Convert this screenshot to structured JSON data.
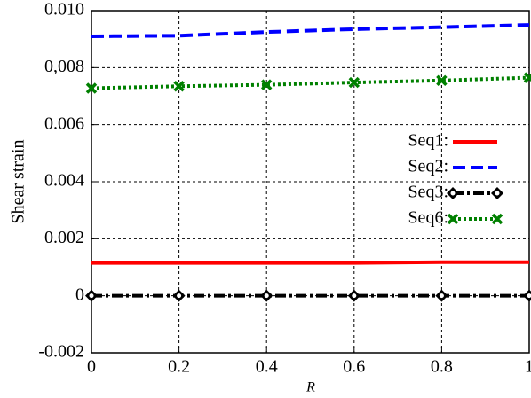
{
  "chart_data": {
    "type": "line",
    "x": [
      0,
      0.2,
      0.4,
      0.6,
      0.8,
      1
    ],
    "xlabel": "R",
    "ylabel": "Shear strain",
    "xlim": [
      0,
      1
    ],
    "xticks": [
      0,
      0.2,
      0.4,
      0.6,
      0.8,
      1
    ],
    "ylim": [
      -0.002,
      0.01
    ],
    "yticks": [
      -0.002,
      0,
      0.002,
      0.004,
      0.006,
      {
        "value": 0.008,
        "label": "0,008"
      },
      {
        "value": 0.01,
        "label": "0.010"
      }
    ],
    "grid": true,
    "legend": "right",
    "series": [
      {
        "name": "Seq1:",
        "color": "#ff0000",
        "linestyle": "solid",
        "marker": "none",
        "values": [
          0.00115,
          0.00115,
          0.00115,
          0.00115,
          0.00118,
          0.00118
        ]
      },
      {
        "name": "Seq2:",
        "color": "#0000ff",
        "linestyle": "dashed",
        "marker": "none",
        "values": [
          0.0091,
          0.00912,
          0.00925,
          0.00935,
          0.00942,
          0.0095
        ]
      },
      {
        "name": "Seq3:",
        "color": "#000000",
        "linestyle": "dashdot",
        "marker": "diamond",
        "values": [
          0,
          0,
          0,
          0,
          0,
          0
        ]
      },
      {
        "name": "Seq6:",
        "color": "#008000",
        "linestyle": "dotted",
        "marker": "x",
        "values": [
          0.00728,
          0.00735,
          0.0074,
          0.00748,
          0.00755,
          0.00765
        ]
      }
    ]
  }
}
